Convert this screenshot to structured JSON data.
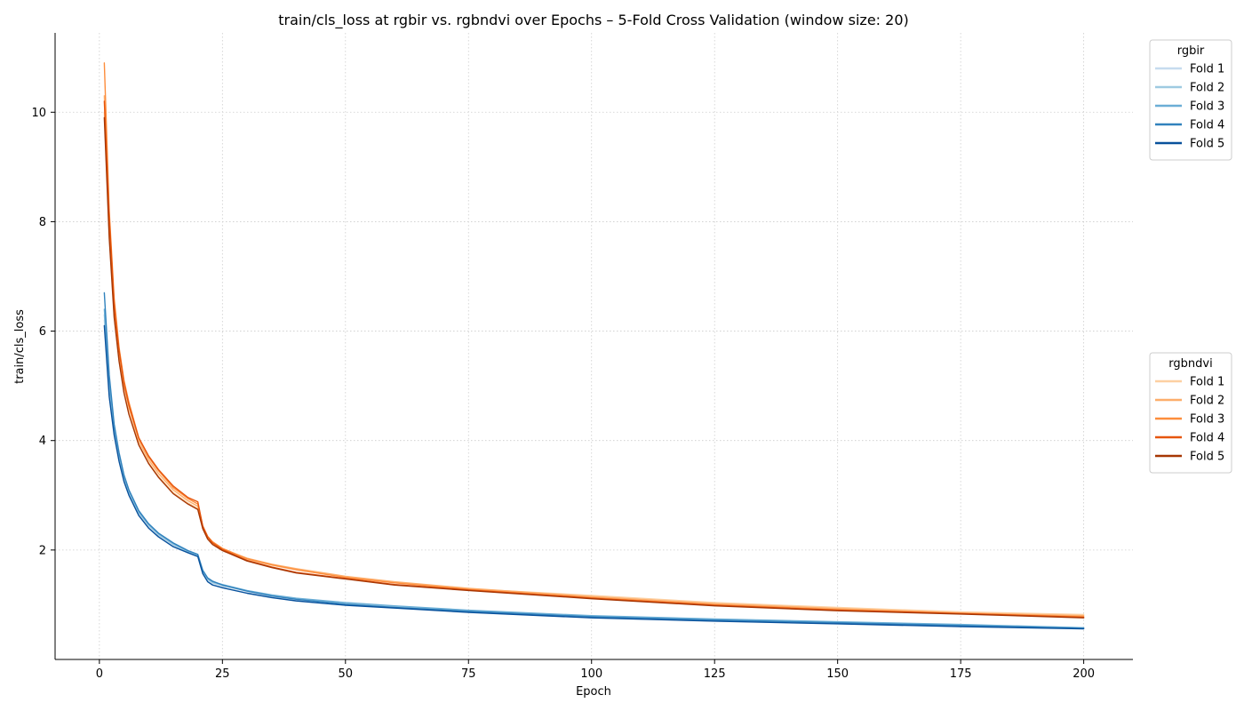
{
  "chart_data": {
    "type": "line",
    "title": "train/cls_loss at rgbir vs. rgbndvi over Epochs – 5-Fold Cross Validation (window size: 20)",
    "xlabel": "Epoch",
    "ylabel": "train/cls_loss",
    "xlim": [
      -9,
      210
    ],
    "ylim": [
      0.0,
      11.45
    ],
    "xticks": [
      0,
      25,
      50,
      75,
      100,
      125,
      150,
      175,
      200
    ],
    "yticks": [
      2,
      4,
      6,
      8,
      10
    ],
    "grid": true,
    "legend_placement": "outside-right",
    "legends": [
      {
        "title": "rgbir",
        "entries": [
          "Fold 1",
          "Fold 2",
          "Fold 3",
          "Fold 4",
          "Fold 5"
        ],
        "colors": [
          "#c6dbef",
          "#9ecae1",
          "#6baed6",
          "#3182bd",
          "#08519c"
        ]
      },
      {
        "title": "rgbndvi",
        "entries": [
          "Fold 1",
          "Fold 2",
          "Fold 3",
          "Fold 4",
          "Fold 5"
        ],
        "colors": [
          "#fdd0a2",
          "#fdae6b",
          "#fd8d3c",
          "#e6550d",
          "#a63603"
        ]
      }
    ],
    "series": [
      {
        "group": "rgbir",
        "color": "#c6dbef",
        "x": [
          1,
          2,
          3,
          4,
          5,
          6,
          8,
          10,
          12,
          15,
          18,
          20,
          21,
          22,
          23,
          25,
          30,
          35,
          40,
          50,
          60,
          75,
          100,
          125,
          150,
          175,
          200
        ],
        "y": [
          6.2,
          4.9,
          4.15,
          3.65,
          3.28,
          3.02,
          2.65,
          2.42,
          2.26,
          2.08,
          1.96,
          1.89,
          1.58,
          1.43,
          1.37,
          1.32,
          1.22,
          1.14,
          1.08,
          1.0,
          0.95,
          0.87,
          0.77,
          0.71,
          0.66,
          0.61,
          0.57
        ]
      },
      {
        "group": "rgbir",
        "color": "#9ecae1",
        "x": [
          1,
          2,
          3,
          4,
          5,
          6,
          8,
          10,
          12,
          15,
          18,
          20,
          21,
          22,
          23,
          25,
          30,
          35,
          40,
          50,
          60,
          75,
          100,
          125,
          150,
          175,
          200
        ],
        "y": [
          6.3,
          5.0,
          4.2,
          3.7,
          3.32,
          3.05,
          2.68,
          2.45,
          2.28,
          2.1,
          1.97,
          1.9,
          1.6,
          1.46,
          1.4,
          1.35,
          1.25,
          1.17,
          1.11,
          1.03,
          0.97,
          0.89,
          0.79,
          0.73,
          0.68,
          0.63,
          0.58
        ]
      },
      {
        "group": "rgbir",
        "color": "#6baed6",
        "x": [
          1,
          2,
          3,
          4,
          5,
          6,
          8,
          10,
          12,
          15,
          18,
          20,
          21,
          22,
          23,
          25,
          30,
          35,
          40,
          50,
          60,
          75,
          100,
          125,
          150,
          175,
          200
        ],
        "y": [
          6.4,
          5.05,
          4.25,
          3.75,
          3.35,
          3.08,
          2.7,
          2.47,
          2.3,
          2.12,
          1.98,
          1.91,
          1.62,
          1.48,
          1.42,
          1.37,
          1.26,
          1.18,
          1.12,
          1.04,
          0.98,
          0.9,
          0.8,
          0.74,
          0.69,
          0.64,
          0.58
        ]
      },
      {
        "group": "rgbir",
        "color": "#3182bd",
        "x": [
          1,
          2,
          3,
          4,
          5,
          6,
          8,
          10,
          12,
          15,
          18,
          20,
          21,
          22,
          23,
          25,
          30,
          35,
          40,
          50,
          60,
          75,
          100,
          125,
          150,
          175,
          200
        ],
        "y": [
          6.7,
          5.2,
          4.3,
          3.78,
          3.37,
          3.1,
          2.72,
          2.48,
          2.31,
          2.13,
          1.99,
          1.92,
          1.63,
          1.49,
          1.43,
          1.36,
          1.25,
          1.16,
          1.1,
          1.01,
          0.95,
          0.88,
          0.78,
          0.72,
          0.67,
          0.62,
          0.57
        ]
      },
      {
        "group": "rgbir",
        "color": "#08519c",
        "x": [
          1,
          2,
          3,
          4,
          5,
          6,
          8,
          10,
          12,
          15,
          18,
          20,
          21,
          22,
          23,
          25,
          30,
          35,
          40,
          50,
          60,
          75,
          100,
          125,
          150,
          175,
          200
        ],
        "y": [
          6.1,
          4.8,
          4.1,
          3.62,
          3.25,
          3.0,
          2.63,
          2.4,
          2.24,
          2.06,
          1.95,
          1.88,
          1.57,
          1.42,
          1.36,
          1.31,
          1.21,
          1.13,
          1.07,
          0.99,
          0.94,
          0.86,
          0.76,
          0.7,
          0.65,
          0.6,
          0.56
        ]
      },
      {
        "group": "rgbndvi",
        "color": "#fdd0a2",
        "x": [
          1,
          2,
          3,
          4,
          5,
          6,
          8,
          10,
          12,
          15,
          18,
          20,
          21,
          22,
          23,
          25,
          30,
          35,
          40,
          50,
          60,
          75,
          100,
          125,
          150,
          175,
          200
        ],
        "y": [
          10.0,
          7.8,
          6.3,
          5.5,
          4.9,
          4.5,
          3.95,
          3.6,
          3.35,
          3.05,
          2.86,
          2.76,
          2.4,
          2.22,
          2.12,
          2.0,
          1.83,
          1.72,
          1.64,
          1.5,
          1.41,
          1.29,
          1.17,
          1.04,
          0.95,
          0.87,
          0.82
        ]
      },
      {
        "group": "rgbndvi",
        "color": "#fdae6b",
        "x": [
          1,
          2,
          3,
          4,
          5,
          6,
          8,
          10,
          12,
          15,
          18,
          20,
          21,
          22,
          23,
          25,
          30,
          35,
          40,
          50,
          60,
          75,
          100,
          125,
          150,
          175,
          200
        ],
        "y": [
          10.3,
          8.0,
          6.4,
          5.6,
          5.0,
          4.6,
          4.0,
          3.65,
          3.4,
          3.1,
          2.9,
          2.8,
          2.42,
          2.24,
          2.14,
          2.02,
          1.85,
          1.74,
          1.66,
          1.52,
          1.42,
          1.3,
          1.15,
          1.02,
          0.93,
          0.85,
          0.8
        ]
      },
      {
        "group": "rgbndvi",
        "color": "#fd8d3c",
        "x": [
          1,
          2,
          3,
          4,
          5,
          6,
          8,
          10,
          12,
          15,
          18,
          20,
          21,
          22,
          23,
          25,
          30,
          35,
          40,
          50,
          60,
          75,
          100,
          125,
          150,
          175,
          200
        ],
        "y": [
          10.9,
          8.2,
          6.6,
          5.7,
          5.1,
          4.7,
          4.05,
          3.7,
          3.45,
          3.14,
          2.94,
          2.84,
          2.44,
          2.25,
          2.15,
          2.03,
          1.84,
          1.73,
          1.64,
          1.5,
          1.4,
          1.28,
          1.13,
          1.0,
          0.91,
          0.84,
          0.78
        ]
      },
      {
        "group": "rgbndvi",
        "color": "#e6550d",
        "x": [
          1,
          2,
          3,
          4,
          5,
          6,
          8,
          10,
          12,
          15,
          18,
          20,
          21,
          22,
          23,
          25,
          30,
          35,
          40,
          50,
          60,
          75,
          100,
          125,
          150,
          175,
          200
        ],
        "y": [
          10.2,
          8.1,
          6.5,
          5.65,
          5.05,
          4.65,
          4.05,
          3.72,
          3.47,
          3.17,
          2.96,
          2.88,
          2.44,
          2.24,
          2.13,
          2.01,
          1.81,
          1.69,
          1.59,
          1.48,
          1.37,
          1.27,
          1.12,
          0.99,
          0.9,
          0.84,
          0.77
        ]
      },
      {
        "group": "rgbndvi",
        "color": "#a63603",
        "x": [
          1,
          2,
          3,
          4,
          5,
          6,
          8,
          10,
          12,
          15,
          18,
          20,
          21,
          22,
          23,
          25,
          30,
          35,
          40,
          50,
          60,
          75,
          100,
          125,
          150,
          175,
          200
        ],
        "y": [
          9.9,
          7.7,
          6.25,
          5.45,
          4.87,
          4.48,
          3.92,
          3.58,
          3.33,
          3.03,
          2.84,
          2.74,
          2.39,
          2.2,
          2.1,
          1.99,
          1.8,
          1.68,
          1.58,
          1.47,
          1.36,
          1.26,
          1.11,
          0.98,
          0.89,
          0.83,
          0.76
        ]
      }
    ]
  }
}
